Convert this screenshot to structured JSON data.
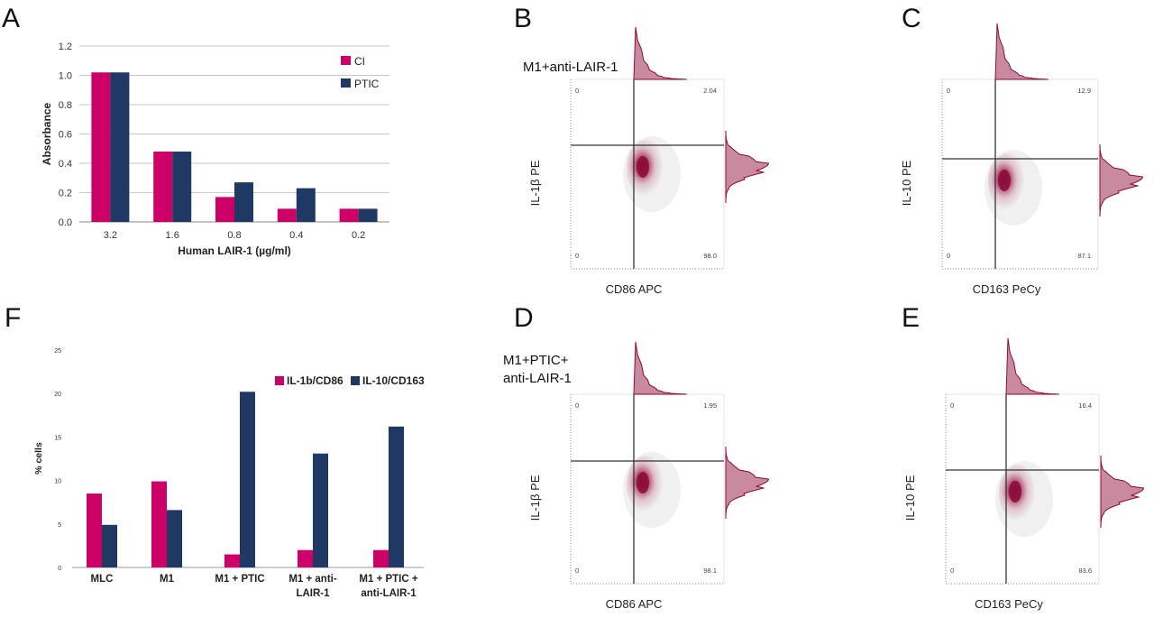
{
  "panels": {
    "A": "A",
    "B": "B",
    "C": "C",
    "D": "D",
    "E": "E",
    "F": "F"
  },
  "colors": {
    "pink": "#CC0066",
    "navy": "#1F3864",
    "density": "#8B0A3A",
    "hist_fill": "#C98AA0"
  },
  "chart_data": [
    {
      "id": "A",
      "type": "bar",
      "title": "",
      "xlabel": "Human LAIR-1 (µg/ml)",
      "ylabel": "Absorbance",
      "ylim": [
        0,
        1.2
      ],
      "yticks": [
        "0.0",
        "0.2",
        "0.4",
        "0.6",
        "0.8",
        "1.0",
        "1.2"
      ],
      "categories": [
        "3.2",
        "1.6",
        "0.8",
        "0.4",
        "0.2"
      ],
      "series": [
        {
          "name": "CI",
          "values": [
            1.02,
            0.48,
            0.17,
            0.09,
            0.09
          ]
        },
        {
          "name": "PTIC",
          "values": [
            1.02,
            0.48,
            0.27,
            0.23,
            0.09
          ]
        }
      ],
      "grid": true,
      "legend": "top-right"
    },
    {
      "id": "F",
      "type": "bar",
      "title": "",
      "xlabel": "",
      "ylabel": "% cells",
      "ylim": [
        0,
        25
      ],
      "yticks": [
        "0",
        "5",
        "10",
        "15",
        "20",
        "25"
      ],
      "categories": [
        [
          "MLC"
        ],
        [
          "M1"
        ],
        [
          "M1 + PTIC"
        ],
        [
          "M1 + anti-",
          "LAIR-1"
        ],
        [
          "M1 + PTIC +",
          "anti-LAIR-1"
        ]
      ],
      "series": [
        {
          "name": "IL-1b/CD86",
          "values": [
            8.5,
            9.9,
            1.5,
            2.0,
            2.0
          ]
        },
        {
          "name": "IL-10/CD163",
          "values": [
            4.9,
            6.6,
            20.2,
            13.1,
            16.2
          ]
        }
      ],
      "grid": false,
      "legend": "top-right"
    }
  ],
  "flow_panels": [
    {
      "id": "B",
      "condition": [
        "M1+anti-LAIR-1"
      ],
      "xlabel": "CD86 APC",
      "ylabel": "IL-1β PE",
      "q_ul": "0",
      "q_ur": "2.04",
      "q_ll": "0",
      "q_lr": "98.0"
    },
    {
      "id": "C",
      "condition": [],
      "xlabel": "CD163 PeCy",
      "ylabel": "IL-10 PE",
      "q_ul": "0",
      "q_ur": "12.9",
      "q_ll": "0",
      "q_lr": "87.1"
    },
    {
      "id": "D",
      "condition": [
        "M1+PTIC+",
        "anti-LAIR-1"
      ],
      "xlabel": "CD86 APC",
      "ylabel": "IL-1β PE",
      "q_ul": "0",
      "q_ur": "1.95",
      "q_ll": "0",
      "q_lr": "98.1"
    },
    {
      "id": "E",
      "condition": [],
      "xlabel": "CD163 PeCy",
      "ylabel": "IL-10 PE",
      "q_ul": "0",
      "q_ur": "16.4",
      "q_ll": "0",
      "q_lr": "83.6"
    }
  ]
}
